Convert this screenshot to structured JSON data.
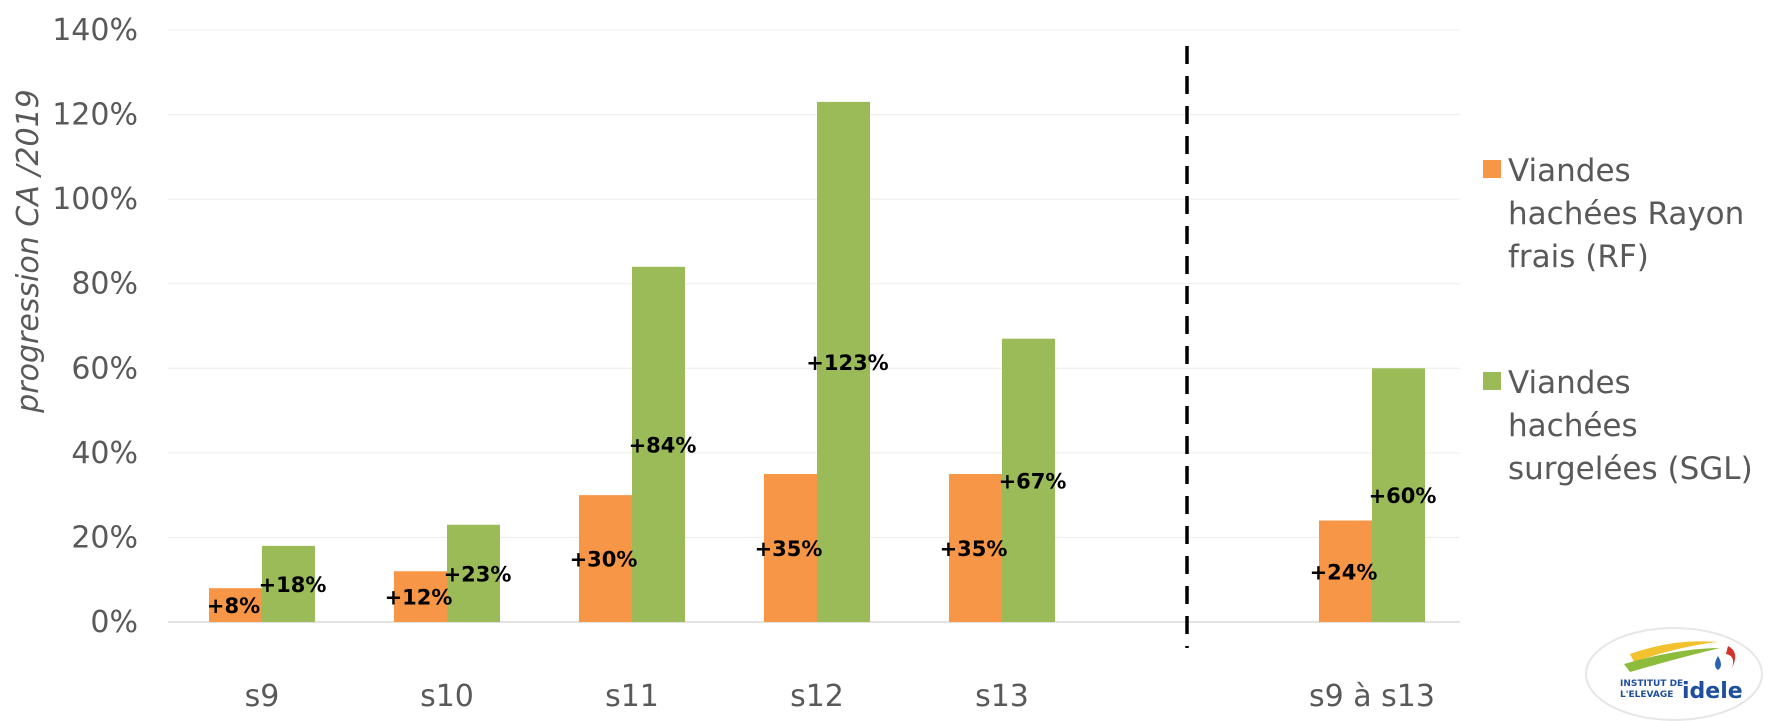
{
  "chart_data": {
    "type": "bar",
    "categories": [
      "s9",
      "s10",
      "s11",
      "s12",
      "s13",
      "",
      "s9 à s13"
    ],
    "series": [
      {
        "name": "Viandes hachées Rayon frais (RF)",
        "color": "#f79646",
        "values": [
          8,
          12,
          30,
          35,
          35,
          null,
          24
        ],
        "labels": [
          "+8%",
          "+12%",
          "+30%",
          "+35%",
          "+35%",
          "",
          "+24%"
        ]
      },
      {
        "name": "Viandes hachées surgelées (SGL)",
        "color": "#9bbb59",
        "values": [
          18,
          23,
          84,
          123,
          67,
          null,
          60
        ],
        "labels": [
          "+18%",
          "+23%",
          "+84%",
          "+123%",
          "+67%",
          "",
          "+60%"
        ]
      }
    ],
    "ylabel": "progression CA /2019",
    "ylim": [
      0,
      140
    ],
    "yticks": [
      "0%",
      "20%",
      "40%",
      "60%",
      "80%",
      "100%",
      "120%",
      "140%"
    ],
    "grid": true,
    "legend_position": "right",
    "divider": "dashed vertical line between s13 and s9 à s13"
  },
  "legend": [
    {
      "lines": [
        "Viandes",
        "hachées Rayon",
        "frais (RF)"
      ],
      "color": "#f79646"
    },
    {
      "lines": [
        "Viandes",
        "hachées",
        "surgelées (SGL)"
      ],
      "color": "#9bbb59"
    }
  ],
  "logo": {
    "text_top": "INSTITUT DE",
    "text_bottom": "L'ELEVAGE",
    "brand": "idele"
  }
}
